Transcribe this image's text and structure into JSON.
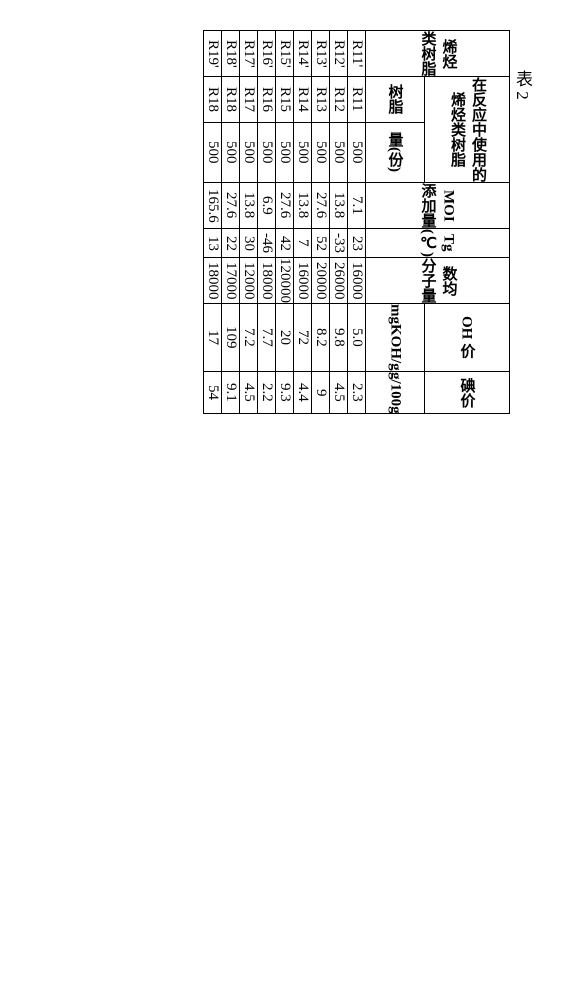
{
  "title": "表 2",
  "columns": {
    "label_group": "烯烃\n类树脂",
    "used_resin_group": "在反应中使用的\n烯烃类树脂",
    "resin_sub": "树脂",
    "amount_sub": "量(份)",
    "moi": "MOI\n添加量",
    "tg": "Tg\n(℃)",
    "mw": "数均\n分子量",
    "oh_group": "OH 价",
    "oh_unit": "mgKOH/g",
    "iodine_group": "碘价",
    "iodine_unit": "g/100g"
  },
  "rows": [
    {
      "label": "R11'",
      "resin": "R11",
      "amount": "500",
      "moi": "7.1",
      "tg": "23",
      "mw": "16000",
      "oh": "5.0",
      "iodine": "2.3"
    },
    {
      "label": "R12'",
      "resin": "R12",
      "amount": "500",
      "moi": "13.8",
      "tg": "-33",
      "mw": "26000",
      "oh": "9.8",
      "iodine": "4.5"
    },
    {
      "label": "R13'",
      "resin": "R13",
      "amount": "500",
      "moi": "27.6",
      "tg": "52",
      "mw": "20000",
      "oh": "8.2",
      "iodine": "9"
    },
    {
      "label": "R14'",
      "resin": "R14",
      "amount": "500",
      "moi": "13.8",
      "tg": "7",
      "mw": "16000",
      "oh": "72",
      "iodine": "4.4"
    },
    {
      "label": "R15'",
      "resin": "R15",
      "amount": "500",
      "moi": "27.6",
      "tg": "42",
      "mw": "120000",
      "oh": "20",
      "iodine": "9.3"
    },
    {
      "label": "R16'",
      "resin": "R16",
      "amount": "500",
      "moi": "6.9",
      "tg": "-46",
      "mw": "18000",
      "oh": "7.7",
      "iodine": "2.2"
    },
    {
      "label": "R17'",
      "resin": "R17",
      "amount": "500",
      "moi": "13.8",
      "tg": "30",
      "mw": "12000",
      "oh": "7.2",
      "iodine": "4.5"
    },
    {
      "label": "R18'",
      "resin": "R18",
      "amount": "500",
      "moi": "27.6",
      "tg": "22",
      "mw": "17000",
      "oh": "109",
      "iodine": "9.1"
    },
    {
      "label": "R19'",
      "resin": "R18",
      "amount": "500",
      "moi": "165.6",
      "tg": "13",
      "mw": "18000",
      "oh": "17",
      "iodine": "54"
    }
  ],
  "style": {
    "background_color": "#ffffff",
    "text_color": "#000000",
    "border_color": "#000000",
    "font_size_title": 17,
    "font_size_body": 15
  }
}
